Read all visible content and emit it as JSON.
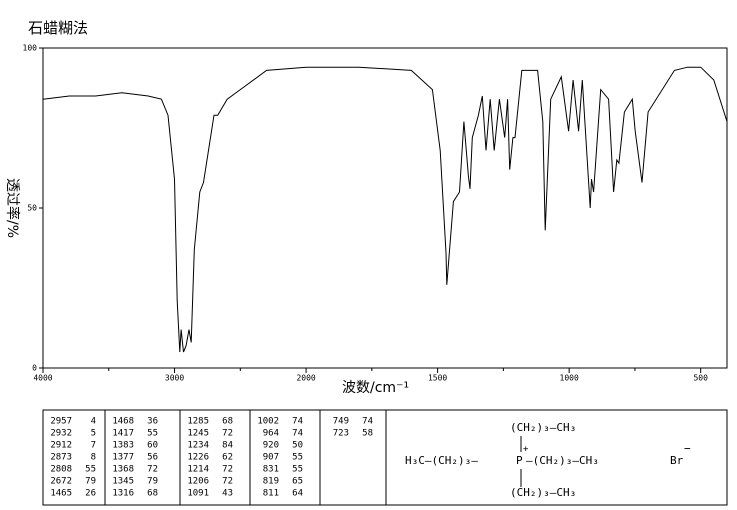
{
  "chart_data": {
    "type": "line",
    "title": "石蜡糊法",
    "xlabel": "波数/cm⁻¹",
    "ylabel": "透过率/%",
    "xlim": [
      4000,
      400
    ],
    "xscale_break": 2000,
    "xscale_ratio": 2,
    "xticks": [
      4000,
      3000,
      2000,
      1500,
      1000,
      500
    ],
    "xminorticks": [
      3500,
      2500,
      1750,
      1250,
      750
    ],
    "ylim": [
      0,
      100
    ],
    "yticks": [
      0,
      50,
      100
    ],
    "x": [
      4000,
      3800,
      3600,
      3400,
      3200,
      3100,
      3050,
      3000,
      2980,
      2960,
      2950,
      2932,
      2912,
      2890,
      2873,
      2850,
      2808,
      2780,
      2700,
      2672,
      2600,
      2500,
      2300,
      2000,
      1800,
      1600,
      1520,
      1490,
      1468,
      1465,
      1440,
      1417,
      1400,
      1383,
      1377,
      1368,
      1345,
      1330,
      1316,
      1300,
      1285,
      1265,
      1245,
      1234,
      1226,
      1214,
      1206,
      1180,
      1120,
      1100,
      1091,
      1070,
      1030,
      1002,
      985,
      964,
      950,
      920,
      915,
      907,
      880,
      850,
      831,
      819,
      811,
      790,
      760,
      749,
      723,
      700,
      600,
      550,
      500,
      450,
      400
    ],
    "series": [
      {
        "name": "spectrum",
        "color": "#000000",
        "values": [
          84,
          85,
          85,
          86,
          85,
          84,
          79,
          59,
          21,
          5,
          12,
          5,
          7,
          12,
          8,
          37,
          55,
          58,
          79,
          79,
          84,
          87,
          93,
          94,
          94,
          93,
          87,
          68,
          36,
          26,
          52,
          55,
          77,
          60,
          56,
          72,
          79,
          85,
          68,
          84,
          68,
          84,
          72,
          84,
          62,
          72,
          72,
          93,
          93,
          77,
          43,
          84,
          91,
          74,
          90,
          74,
          90,
          50,
          59,
          55,
          87,
          84,
          55,
          65,
          64,
          80,
          84,
          74,
          58,
          80,
          93,
          94,
          94,
          90,
          77
        ]
      }
    ]
  },
  "peaks": [
    [
      2957,
      4
    ],
    [
      2932,
      5
    ],
    [
      2912,
      7
    ],
    [
      2873,
      8
    ],
    [
      2808,
      55
    ],
    [
      2672,
      79
    ],
    [
      1465,
      26
    ],
    [
      1468,
      36
    ],
    [
      1417,
      55
    ],
    [
      1383,
      60
    ],
    [
      1377,
      56
    ],
    [
      1368,
      72
    ],
    [
      1345,
      79
    ],
    [
      1316,
      68
    ],
    [
      1285,
      68
    ],
    [
      1245,
      72
    ],
    [
      1234,
      84
    ],
    [
      1226,
      62
    ],
    [
      1214,
      72
    ],
    [
      1206,
      72
    ],
    [
      1091,
      43
    ],
    [
      1002,
      74
    ],
    [
      964,
      74
    ],
    [
      920,
      50
    ],
    [
      907,
      55
    ],
    [
      831,
      55
    ],
    [
      819,
      65
    ],
    [
      811,
      64
    ],
    [
      749,
      74
    ],
    [
      723,
      58
    ]
  ],
  "structure": {
    "top": "(CH₂)₃—CH₃",
    "left": "H₃C—(CH₂)₃—",
    "center": "P",
    "charge": "+",
    "right": "—(CH₂)₃—CH₃",
    "bottom": "(CH₂)₃—CH₃",
    "anion": "Br",
    "anion_charge": "−"
  }
}
